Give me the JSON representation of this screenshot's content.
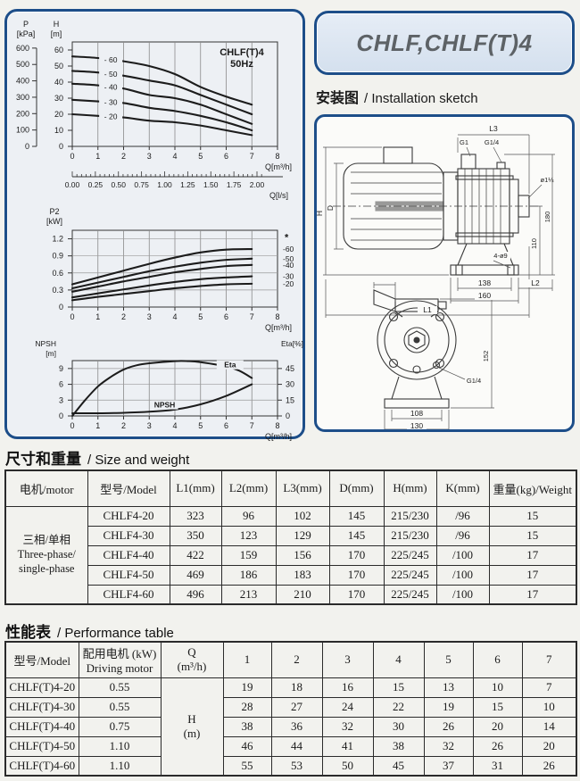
{
  "colors": {
    "panel_border": "#1d4e89",
    "panel_bg": "#edf0f4",
    "titlebox_bg": "#dde7f2",
    "title_text": "#5d6266",
    "table_border": "#2b2b2b",
    "curve": "#1c1c1c",
    "page_bg": "#f2f2ee"
  },
  "header": {
    "title": "CHLF,CHLF(T)4",
    "installation_zh": "安装图",
    "installation_en": "/ Installation sketch",
    "size_zh": "尺寸和重量",
    "size_en": "/ Size and weight",
    "perf_zh": "性能表",
    "perf_en": "/ Performance table"
  },
  "chart_data": [
    {
      "type": "line",
      "title_lines": [
        "CHLF(T)4",
        "50Hz"
      ],
      "xlabel": "Q[m³/h]",
      "x_ticks": [
        0,
        1,
        2,
        3,
        4,
        5,
        6,
        7,
        8
      ],
      "xlim": [
        0,
        8
      ],
      "ylabel_lines": [
        "H",
        "[m]"
      ],
      "y_ticks": [
        0,
        10,
        20,
        30,
        40,
        50,
        60
      ],
      "ylim": [
        0,
        65
      ],
      "p_axis": {
        "title_lines": [
          "P",
          "[kPa]"
        ],
        "ticks": [
          0,
          100,
          200,
          300,
          400,
          500,
          600
        ],
        "kpa_to_m": 0.10197
      },
      "x2_axis": {
        "label": "Q[l/s]",
        "tick_labels": [
          "0.00",
          "0.25",
          "0.50",
          "0.75",
          "1.00",
          "1.25",
          "1.50",
          "1.75",
          "2.00"
        ],
        "tick_values": [
          0,
          0.25,
          0.5,
          0.75,
          1,
          1.25,
          1.5,
          1.75,
          2
        ],
        "m3h_per_ls": 3.6
      },
      "x": [
        0,
        1,
        2,
        3,
        4,
        5,
        6,
        7
      ],
      "series": [
        {
          "name": "-60",
          "label": "- 60",
          "values": [
            56,
            55,
            53,
            50,
            45,
            37,
            31,
            26
          ]
        },
        {
          "name": "-50",
          "label": "- 50",
          "values": [
            47,
            46,
            44,
            41,
            38,
            32,
            26,
            20
          ]
        },
        {
          "name": "-40",
          "label": "- 40",
          "values": [
            39,
            38,
            36,
            32,
            30,
            26,
            20,
            14
          ]
        },
        {
          "name": "-30",
          "label": "- 30",
          "values": [
            29,
            28,
            27,
            24,
            22,
            19,
            15,
            10
          ]
        },
        {
          "name": "-20",
          "label": "- 20",
          "values": [
            20,
            19,
            18,
            16,
            15,
            13,
            10,
            7
          ]
        }
      ],
      "label_x": 1.5
    },
    {
      "type": "line",
      "xlabel": "Q[m³/h]",
      "x_ticks": [
        0,
        1,
        2,
        3,
        4,
        5,
        6,
        7,
        8
      ],
      "xlim": [
        0,
        8
      ],
      "ylabel_lines": [
        "P2",
        "[kW]"
      ],
      "y_ticks": [
        0,
        0.3,
        0.6,
        0.9,
        1.2
      ],
      "y_tick_labels": [
        "0",
        "0.3",
        "0.6",
        "0.9",
        "1.2"
      ],
      "ylim": [
        0,
        1.35
      ],
      "star_label": "*",
      "x": [
        0,
        1,
        2,
        3,
        4,
        5,
        6,
        7
      ],
      "series": [
        {
          "name": "-60",
          "label": "-60",
          "values": [
            0.4,
            0.52,
            0.64,
            0.76,
            0.87,
            0.96,
            1.01,
            1.02
          ]
        },
        {
          "name": "-50",
          "label": "-50",
          "values": [
            0.33,
            0.43,
            0.53,
            0.63,
            0.71,
            0.78,
            0.83,
            0.85
          ]
        },
        {
          "name": "-40",
          "label": "-40",
          "values": [
            0.27,
            0.36,
            0.45,
            0.53,
            0.61,
            0.67,
            0.72,
            0.74
          ]
        },
        {
          "name": "-30",
          "label": "-30",
          "values": [
            0.17,
            0.24,
            0.31,
            0.38,
            0.44,
            0.49,
            0.52,
            0.54
          ]
        },
        {
          "name": "-20",
          "label": "-20",
          "values": [
            0.12,
            0.18,
            0.23,
            0.28,
            0.33,
            0.37,
            0.4,
            0.41
          ]
        }
      ]
    },
    {
      "type": "line",
      "xlabel": "Q[m³/h]",
      "x_ticks": [
        0,
        1,
        2,
        3,
        4,
        5,
        6,
        7,
        8
      ],
      "xlim": [
        0,
        8
      ],
      "ylabel_lines": [
        "NPSH",
        "[m]"
      ],
      "y_ticks": [
        0,
        3,
        6,
        9
      ],
      "ylim": [
        0,
        10.5
      ],
      "right_axis": {
        "title": "Eta[%]",
        "ticks": [
          0,
          15,
          30,
          45
        ],
        "pct_per_m": 5
      },
      "series": [
        {
          "name": "Eta",
          "unit": "%",
          "x": [
            0,
            0.5,
            1,
            1.5,
            2,
            2.5,
            3,
            4,
            4.5,
            5,
            6,
            6.5,
            7
          ],
          "values": [
            0,
            15,
            28,
            37,
            44,
            48,
            50,
            52,
            52,
            51,
            47,
            43,
            36
          ]
        },
        {
          "name": "NPSH",
          "unit": "m",
          "x": [
            0,
            1,
            2,
            3,
            4,
            5,
            6,
            7
          ],
          "values": [
            0.5,
            0.5,
            0.6,
            0.8,
            1.2,
            2.2,
            3.8,
            6.0
          ]
        }
      ],
      "curve_text_labels": [
        {
          "text": "Eta",
          "q": 6.15,
          "m": 9.7
        },
        {
          "text": "NPSH",
          "q": 3.6,
          "m": 2.1
        }
      ]
    }
  ],
  "sketch": {
    "side_labels": [
      "H",
      "D",
      "L3",
      "G1",
      "G1/4",
      "ø1¼",
      "110",
      "180",
      "138",
      "160",
      "L2",
      "L1",
      "4-ø9"
    ],
    "front_labels": [
      "152",
      "G1/4",
      "108",
      "130"
    ]
  },
  "size_table": {
    "headers": [
      "电机/motor",
      "型号/Model",
      "L1(mm)",
      "L2(mm)",
      "L3(mm)",
      "D(mm)",
      "H(mm)",
      "K(mm)",
      "重量(kg)/Weight"
    ],
    "motor_group": "三相/单相\nThree-phase/\nsingle-phase",
    "rows": [
      [
        "CHLF4-20",
        "323",
        "96",
        "102",
        "145",
        "215/230",
        "/96",
        "15"
      ],
      [
        "CHLF4-30",
        "350",
        "123",
        "129",
        "145",
        "215/230",
        "/96",
        "15"
      ],
      [
        "CHLF4-40",
        "422",
        "159",
        "156",
        "170",
        "225/245",
        "/100",
        "17"
      ],
      [
        "CHLF4-50",
        "469",
        "186",
        "183",
        "170",
        "225/245",
        "/100",
        "17"
      ],
      [
        "CHLF4-60",
        "496",
        "213",
        "210",
        "170",
        "225/245",
        "/100",
        "17"
      ]
    ]
  },
  "perf_table": {
    "headers": [
      "型号/Model",
      "配用电机 (kW)\nDriving motor",
      "Q\n(m³/h)",
      "1",
      "2",
      "3",
      "4",
      "5",
      "6",
      "7"
    ],
    "h_cell": "H\n(m)",
    "rows": [
      [
        "CHLF(T)4-20",
        "0.55",
        "19",
        "18",
        "16",
        "15",
        "13",
        "10",
        "7"
      ],
      [
        "CHLF(T)4-30",
        "0.55",
        "28",
        "27",
        "24",
        "22",
        "19",
        "15",
        "10"
      ],
      [
        "CHLF(T)4-40",
        "0.75",
        "38",
        "36",
        "32",
        "30",
        "26",
        "20",
        "14"
      ],
      [
        "CHLF(T)4-50",
        "1.10",
        "46",
        "44",
        "41",
        "38",
        "32",
        "26",
        "20"
      ],
      [
        "CHLF(T)4-60",
        "1.10",
        "55",
        "53",
        "50",
        "45",
        "37",
        "31",
        "26"
      ]
    ]
  }
}
